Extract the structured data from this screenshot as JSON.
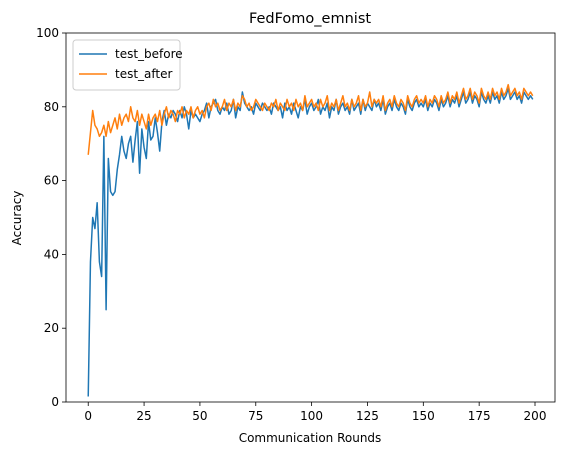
{
  "chart_data": {
    "type": "line",
    "title": "FedFomo_emnist",
    "xlabel": "Communication Rounds",
    "ylabel": "Accuracy",
    "x": [
      0,
      1,
      2,
      3,
      4,
      5,
      6,
      7,
      8,
      9,
      10,
      11,
      12,
      13,
      14,
      15,
      16,
      17,
      18,
      19,
      20,
      21,
      22,
      23,
      24,
      25,
      26,
      27,
      28,
      29,
      30,
      31,
      32,
      33,
      34,
      35,
      36,
      37,
      38,
      39,
      40,
      41,
      42,
      43,
      44,
      45,
      46,
      47,
      48,
      49,
      50,
      51,
      52,
      53,
      54,
      55,
      56,
      57,
      58,
      59,
      60,
      61,
      62,
      63,
      64,
      65,
      66,
      67,
      68,
      69,
      70,
      71,
      72,
      73,
      74,
      75,
      76,
      77,
      78,
      79,
      80,
      81,
      82,
      83,
      84,
      85,
      86,
      87,
      88,
      89,
      90,
      91,
      92,
      93,
      94,
      95,
      96,
      97,
      98,
      99,
      100,
      101,
      102,
      103,
      104,
      105,
      106,
      107,
      108,
      109,
      110,
      111,
      112,
      113,
      114,
      115,
      116,
      117,
      118,
      119,
      120,
      121,
      122,
      123,
      124,
      125,
      126,
      127,
      128,
      129,
      130,
      131,
      132,
      133,
      134,
      135,
      136,
      137,
      138,
      139,
      140,
      141,
      142,
      143,
      144,
      145,
      146,
      147,
      148,
      149,
      150,
      151,
      152,
      153,
      154,
      155,
      156,
      157,
      158,
      159,
      160,
      161,
      162,
      163,
      164,
      165,
      166,
      167,
      168,
      169,
      170,
      171,
      172,
      173,
      174,
      175,
      176,
      177,
      178,
      179,
      180,
      181,
      182,
      183,
      184,
      185,
      186,
      187,
      188,
      189,
      190,
      191,
      192,
      193,
      194,
      195,
      196,
      197,
      198,
      199
    ],
    "series": [
      {
        "name": "test_before",
        "color": "#1f77b4",
        "values": [
          1.5,
          38,
          50,
          47,
          54,
          38,
          34,
          72,
          25,
          66,
          57,
          56,
          57,
          63,
          67,
          72,
          68,
          66,
          70,
          72,
          65,
          71,
          76,
          62,
          74,
          69,
          66,
          76,
          71,
          72,
          77,
          73,
          68,
          76,
          79,
          75,
          78,
          77,
          79,
          78,
          76,
          79,
          77,
          80,
          78,
          74,
          79,
          77,
          78,
          77,
          76,
          78,
          79,
          81,
          77,
          80,
          81,
          82,
          79,
          78,
          80,
          79,
          81,
          78,
          79,
          82,
          77,
          80,
          79,
          84,
          81,
          80,
          79,
          80,
          78,
          81,
          80,
          79,
          81,
          80,
          79,
          80,
          78,
          81,
          80,
          79,
          80,
          77,
          81,
          79,
          80,
          78,
          81,
          79,
          77,
          80,
          79,
          82,
          78,
          80,
          81,
          79,
          80,
          82,
          78,
          80,
          79,
          81,
          77,
          80,
          79,
          82,
          78,
          80,
          81,
          79,
          80,
          78,
          82,
          79,
          80,
          81,
          78,
          82,
          79,
          81,
          80,
          79,
          82,
          80,
          81,
          79,
          82,
          78,
          80,
          81,
          79,
          82,
          80,
          79,
          81,
          80,
          78,
          82,
          80,
          79,
          81,
          82,
          80,
          81,
          80,
          82,
          79,
          81,
          80,
          82,
          81,
          79,
          82,
          80,
          81,
          83,
          80,
          82,
          81,
          83,
          80,
          82,
          84,
          81,
          82,
          84,
          81,
          83,
          82,
          80,
          84,
          82,
          81,
          83,
          81,
          84,
          82,
          83,
          81,
          84,
          82,
          83,
          85,
          82,
          83,
          84,
          82,
          83,
          81,
          84,
          83,
          82,
          83,
          82
        ]
      },
      {
        "name": "test_after",
        "color": "#ff7f0e",
        "values": [
          67,
          73,
          79,
          75,
          74,
          72,
          73,
          75,
          72,
          76,
          73,
          75,
          77,
          74,
          78,
          75,
          77,
          78,
          76,
          80,
          77,
          76,
          79,
          75,
          78,
          76,
          74,
          78,
          75,
          77,
          78,
          76,
          79,
          75,
          78,
          80,
          77,
          79,
          78,
          76,
          79,
          78,
          80,
          77,
          79,
          78,
          80,
          77,
          79,
          80,
          78,
          79,
          77,
          80,
          81,
          79,
          82,
          80,
          81,
          79,
          80,
          82,
          79,
          81,
          80,
          82,
          79,
          81,
          80,
          83,
          82,
          80,
          81,
          79,
          80,
          82,
          81,
          80,
          79,
          81,
          80,
          79,
          81,
          80,
          82,
          79,
          81,
          80,
          79,
          82,
          80,
          81,
          79,
          82,
          80,
          81,
          79,
          83,
          80,
          81,
          82,
          80,
          81,
          79,
          82,
          80,
          81,
          83,
          79,
          81,
          80,
          82,
          79,
          81,
          83,
          80,
          81,
          79,
          82,
          80,
          81,
          83,
          79,
          82,
          80,
          81,
          84,
          80,
          82,
          81,
          82,
          80,
          83,
          79,
          81,
          82,
          80,
          83,
          81,
          80,
          82,
          81,
          79,
          83,
          81,
          80,
          82,
          83,
          81,
          82,
          81,
          83,
          80,
          82,
          81,
          83,
          82,
          80,
          83,
          81,
          82,
          84,
          81,
          83,
          82,
          84,
          81,
          83,
          85,
          82,
          83,
          85,
          82,
          84,
          83,
          81,
          85,
          83,
          82,
          84,
          82,
          85,
          83,
          84,
          82,
          85,
          83,
          84,
          86,
          83,
          84,
          85,
          83,
          84,
          82,
          85,
          84,
          83,
          84,
          83
        ]
      }
    ],
    "xlim": [
      -9.95,
      208.95
    ],
    "ylim": [
      0,
      100
    ],
    "xticks": [
      0,
      25,
      50,
      75,
      100,
      125,
      150,
      175,
      200
    ],
    "yticks": [
      0,
      20,
      40,
      60,
      80,
      100
    ],
    "legend": "upper left"
  }
}
